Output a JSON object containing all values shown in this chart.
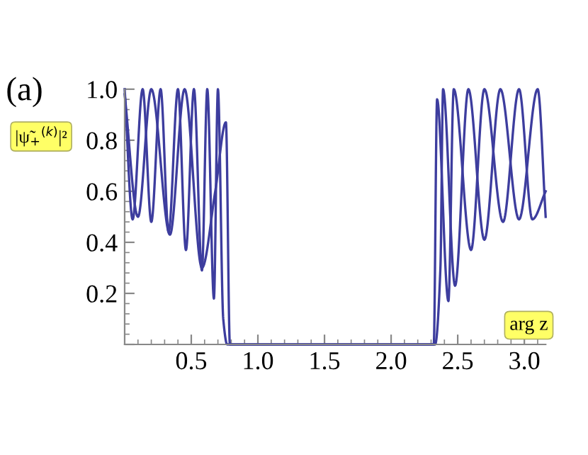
{
  "chart_data": {
    "type": "line",
    "title": "(a)",
    "xlabel": "arg z",
    "ylabel": "|ψ̃$_{+}$$^{(k)}$|²",
    "xlim": [
      0,
      3.16
    ],
    "ylim": [
      0,
      1.0
    ],
    "xticks": [
      0.5,
      {
        "value": 1,
        "label": "1.0"
      },
      1.5,
      {
        "value": 2,
        "label": "2.0"
      },
      2.5,
      {
        "value": 3,
        "label": "3.0"
      }
    ],
    "yticks": [
      {
        "value": 0,
        "label": null
      },
      0.2,
      0.4,
      0.6,
      0.8,
      {
        "value": 1,
        "label": "1.0"
      }
    ],
    "grid": false,
    "legend": false,
    "marker": "none",
    "line_style": "solid",
    "series": [
      {
        "color": "#3d3d9e",
        "x": [
          0,
          0.06,
          0.135,
          0.2,
          0.27,
          0.33,
          0.4,
          0.46,
          0.52,
          0.58,
          0.62,
          0.67,
          0.7,
          0.74,
          0.77,
          1.5,
          2.33,
          2.37,
          2.39,
          2.48,
          2.58,
          2.7,
          2.82,
          2.96,
          3.1,
          3.16
        ],
        "values": [
          1.0,
          0.49,
          1.0,
          0.48,
          1.0,
          0.44,
          1.0,
          0.37,
          1.0,
          0.29,
          1.0,
          0.18,
          1.0,
          0.1,
          0.0,
          0.0,
          0.0,
          0.3,
          1.0,
          0.23,
          1.0,
          0.41,
          1.0,
          0.49,
          1.0,
          0.5
        ]
      },
      {
        "color": "#3d3d9e",
        "x": [
          0,
          0.1,
          0.2,
          0.34,
          0.45,
          0.58,
          0.68,
          0.76,
          0.79,
          1.5,
          2.32,
          2.345,
          2.43,
          2.47,
          2.6,
          2.7,
          2.84,
          2.96,
          3.06,
          3.16
        ],
        "values": [
          0.98,
          0.5,
          1.0,
          0.43,
          1.0,
          0.3,
          0.6,
          0.87,
          0.0,
          0.0,
          0.0,
          0.96,
          0.17,
          1.0,
          0.37,
          1.0,
          0.48,
          1.0,
          0.49,
          0.6
        ]
      }
    ]
  }
}
